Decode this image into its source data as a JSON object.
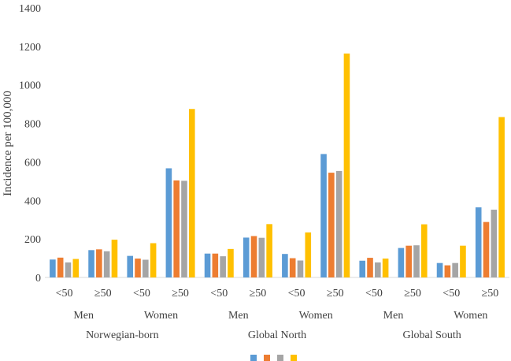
{
  "chart_data": {
    "type": "bar",
    "ylabel": "Incidence per 100,000",
    "ylim": [
      0,
      1400
    ],
    "yticks": [
      0,
      200,
      400,
      600,
      800,
      1000,
      1200,
      1400
    ],
    "grid": false,
    "legend_position": "bottom",
    "groups": [
      {
        "label": "Norwegian-born",
        "sexes": [
          {
            "label": "Men",
            "ages": [
              {
                "label": "<50",
                "values": [
                  93,
                  103,
                  78,
                  96
                ]
              },
              {
                "label": "≥50",
                "values": [
                  142,
                  146,
                  136,
                  196
                ]
              }
            ]
          },
          {
            "label": "Women",
            "ages": [
              {
                "label": "<50",
                "values": [
                  112,
                  98,
                  92,
                  178
                ]
              },
              {
                "label": "≥50",
                "values": [
                  567,
                  504,
                  502,
                  875
                ]
              }
            ]
          }
        ]
      },
      {
        "label": "Global North",
        "sexes": [
          {
            "label": "Men",
            "ages": [
              {
                "label": "<50",
                "values": [
                  124,
                  124,
                  110,
                  148
                ]
              },
              {
                "label": "≥50",
                "values": [
                  207,
                  215,
                  206,
                  277
                ]
              }
            ]
          },
          {
            "label": "Women",
            "ages": [
              {
                "label": "<50",
                "values": [
                  122,
                  100,
                  88,
                  234
                ]
              },
              {
                "label": "≥50",
                "values": [
                  641,
                  544,
                  553,
                  1163
                ]
              }
            ]
          }
        ]
      },
      {
        "label": "Global South",
        "sexes": [
          {
            "label": "Men",
            "ages": [
              {
                "label": "<50",
                "values": [
                  87,
                  102,
                  78,
                  98
                ]
              },
              {
                "label": "≥50",
                "values": [
                  153,
                  165,
                  167,
                  276
                ]
              }
            ]
          },
          {
            "label": "Women",
            "ages": [
              {
                "label": "<50",
                "values": [
                  75,
                  63,
                  75,
                  165
                ]
              },
              {
                "label": "≥50",
                "values": [
                  364,
                  288,
                  352,
                  833
                ]
              }
            ]
          }
        ]
      }
    ],
    "series": [
      {
        "name": "",
        "color": "#5b9bd5"
      },
      {
        "name": "",
        "color": "#ed7d31"
      },
      {
        "name": "",
        "color": "#a5a5a5"
      },
      {
        "name": "",
        "color": "#ffc000"
      }
    ]
  }
}
